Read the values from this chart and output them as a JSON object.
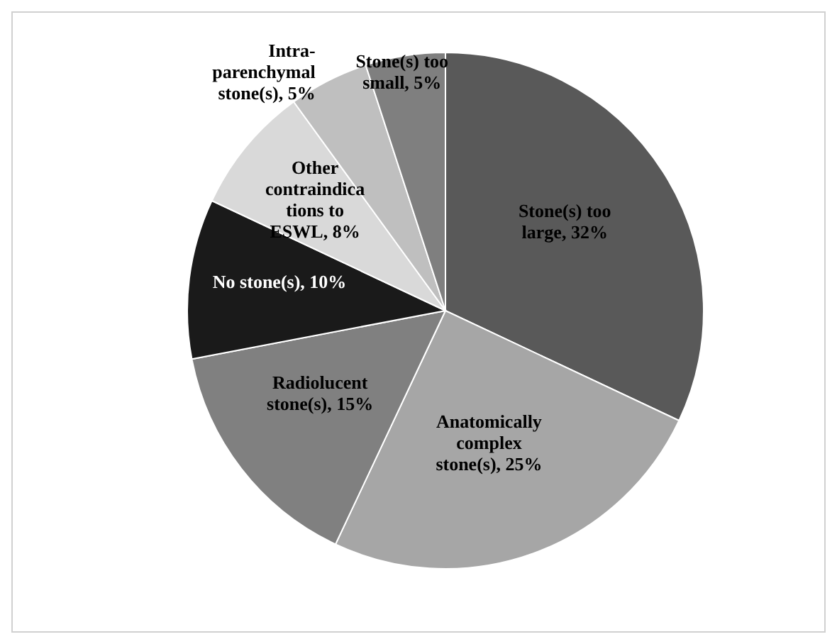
{
  "chart_data": {
    "type": "pie",
    "categories": [
      "Stone(s) too large",
      "Anatomically complex stone(s)",
      "Radiolucent stone(s)",
      "No stone(s)",
      "Other contraindications to ESWL",
      "Intra-parenchymal stone(s)",
      "Stone(s) too small"
    ],
    "values": [
      32,
      25,
      15,
      10,
      8,
      5,
      5
    ],
    "value_labels": [
      "32%",
      "25%",
      "15%",
      "10%",
      "8%",
      "5%",
      "5%"
    ],
    "colors": [
      "#595959",
      "#a6a6a6",
      "#808080",
      "#1a1a1a",
      "#d9d9d9",
      "#bfbfbf",
      "#7f7f7f"
    ]
  }
}
